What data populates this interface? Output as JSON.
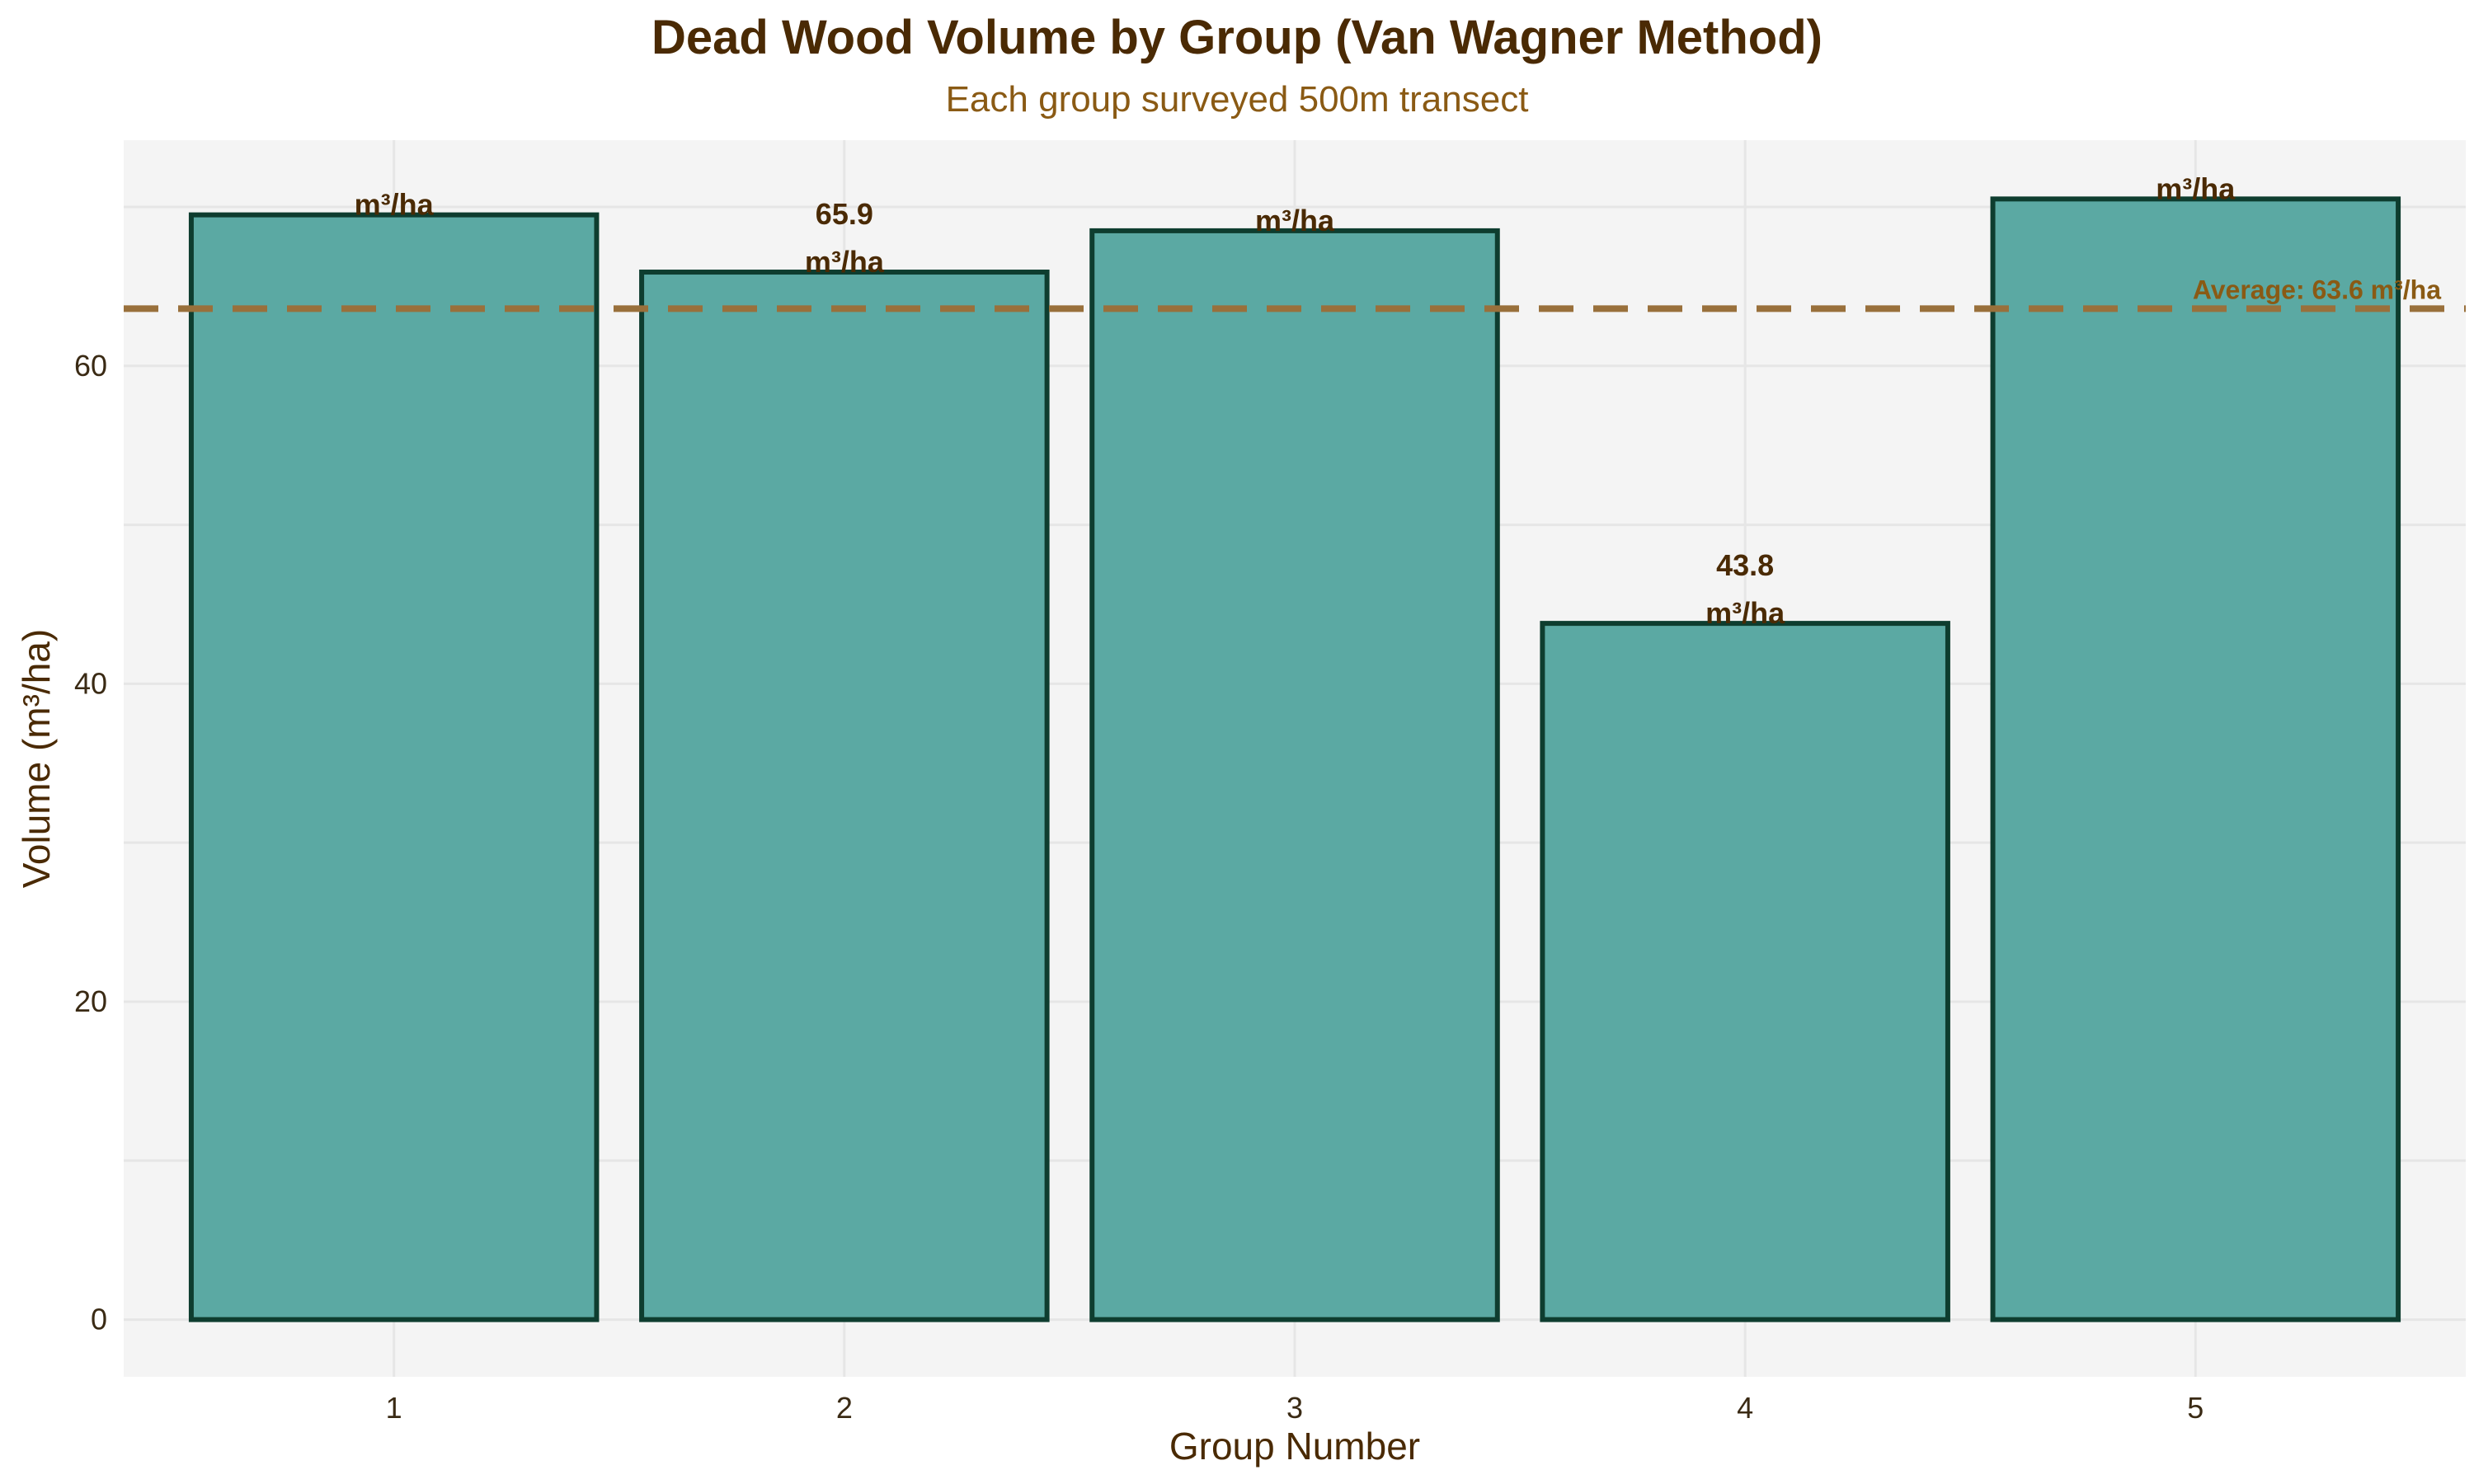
{
  "chart_data": {
    "type": "bar",
    "title": "Dead Wood Volume by Group (Van Wagner Method)",
    "subtitle": "Each group surveyed 500m transect",
    "xlabel": "Group Number",
    "ylabel": "Volume (m³/ha)",
    "categories": [
      "1",
      "2",
      "3",
      "4",
      "5"
    ],
    "values": [
      69.5,
      65.9,
      68.5,
      43.8,
      70.5
    ],
    "value_labels": [
      [
        "",
        "m³/ha"
      ],
      [
        "65.9",
        "m³/ha"
      ],
      [
        "",
        "m³/ha"
      ],
      [
        "43.8",
        "m³/ha"
      ],
      [
        "",
        "m³/ha"
      ]
    ],
    "ylim": [
      -3.6,
      74.2
    ],
    "xlim": [
      0.4,
      5.6
    ],
    "yticks": [
      0,
      20,
      40,
      60
    ],
    "grid": true,
    "average": {
      "value": 63.6,
      "label": "Average: 63.6 m³/ha"
    },
    "colors": {
      "bar_fill": "#5ba9a3",
      "bar_edge": "#0e3d2f",
      "average_line": "#99703b",
      "plot_background": "#f4f4f4",
      "grid": "#e6e6e6"
    }
  }
}
